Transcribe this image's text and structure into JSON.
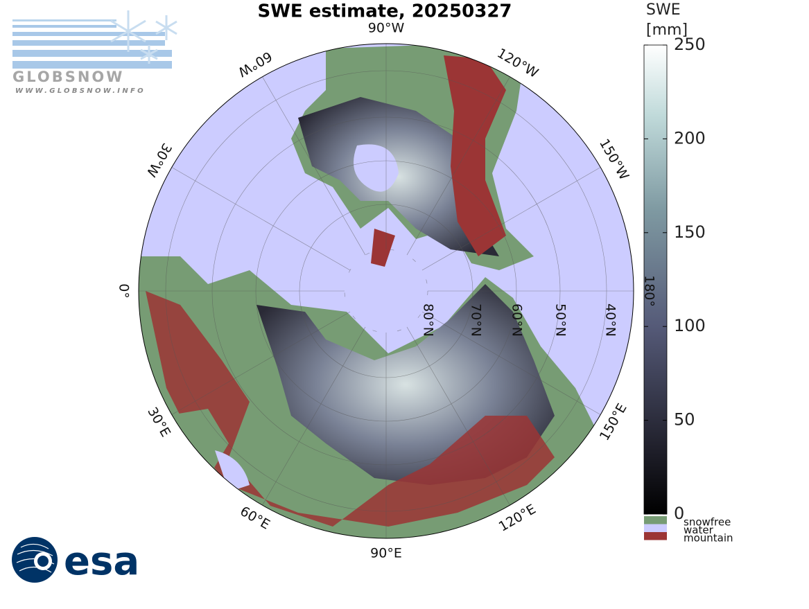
{
  "title": "SWE estimate, 20250327",
  "globsnow_logo": {
    "name": "GLOBSNOW",
    "url": "WWW.GLOBSNOW.INFO"
  },
  "esa_logo": "esa",
  "map": {
    "longitude_labels": [
      "90°W",
      "120°W",
      "150°W",
      "180°",
      "150°E",
      "120°E",
      "90°E",
      "60°E",
      "30°E",
      "0°",
      "30°W",
      "60°W"
    ],
    "latitude_labels": [
      "80°N",
      "70°N",
      "60°N",
      "50°N",
      "40°N"
    ]
  },
  "colorbar": {
    "label": [
      "SWE",
      "[mm]"
    ],
    "lim": [
      0,
      250
    ],
    "ticks": [
      0,
      50,
      100,
      150,
      200,
      250
    ]
  },
  "legend": [
    {
      "name": "snowfree",
      "color": "#779c74"
    },
    {
      "name": "water",
      "color": "#ccccff"
    },
    {
      "name": "mountain",
      "color": "#9b3535"
    }
  ]
}
